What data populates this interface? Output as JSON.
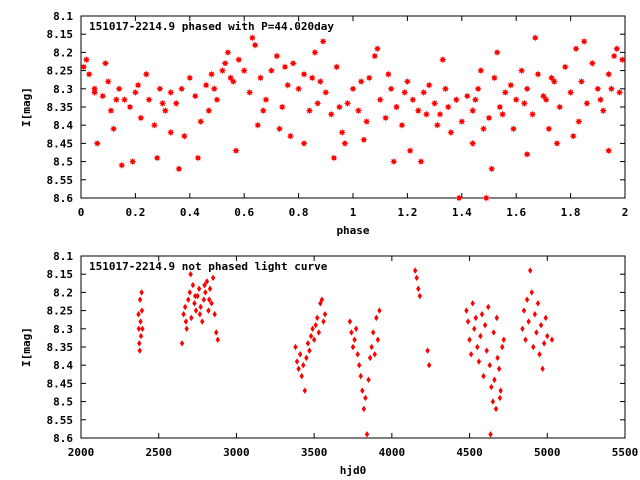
{
  "chart_data": [
    {
      "type": "scatter",
      "title": "151017-2214.9 phased with P=44.020day",
      "xlabel": "phase",
      "ylabel": "I[mag]",
      "xlim": [
        0,
        2
      ],
      "ylim": [
        8.6,
        8.1
      ],
      "y_reversed": true,
      "x_ticks": [
        "0",
        "0.2",
        "0.4",
        "0.6",
        "0.8",
        "1",
        "1.2",
        "1.4",
        "1.6",
        "1.8",
        "2"
      ],
      "y_ticks": [
        "8.1",
        "8.15",
        "8.2",
        "8.25",
        "8.3",
        "8.35",
        "8.4",
        "8.45",
        "8.5",
        "8.55",
        "8.6"
      ],
      "marker": "star",
      "color": "#ff0000",
      "points": [
        [
          0.01,
          8.24
        ],
        [
          0.02,
          8.22
        ],
        [
          0.03,
          8.26
        ],
        [
          0.05,
          8.31
        ],
        [
          0.06,
          8.45
        ],
        [
          0.08,
          8.32
        ],
        [
          0.1,
          8.28
        ],
        [
          0.12,
          8.41
        ],
        [
          0.14,
          8.3
        ],
        [
          0.16,
          8.33
        ],
        [
          0.18,
          8.35
        ],
        [
          0.2,
          8.31
        ],
        [
          0.22,
          8.38
        ],
        [
          0.25,
          8.33
        ],
        [
          0.27,
          8.4
        ],
        [
          0.29,
          8.3
        ],
        [
          0.31,
          8.36
        ],
        [
          0.33,
          8.42
        ],
        [
          0.35,
          8.34
        ],
        [
          0.37,
          8.3
        ],
        [
          0.4,
          8.27
        ],
        [
          0.42,
          8.32
        ],
        [
          0.44,
          8.39
        ],
        [
          0.46,
          8.29
        ],
        [
          0.48,
          8.26
        ],
        [
          0.5,
          8.33
        ],
        [
          0.52,
          8.25
        ],
        [
          0.54,
          8.2
        ],
        [
          0.56,
          8.28
        ],
        [
          0.58,
          8.22
        ],
        [
          0.6,
          8.25
        ],
        [
          0.62,
          8.31
        ],
        [
          0.64,
          8.18
        ],
        [
          0.66,
          8.27
        ],
        [
          0.68,
          8.33
        ],
        [
          0.7,
          8.25
        ],
        [
          0.72,
          8.21
        ],
        [
          0.74,
          8.35
        ],
        [
          0.76,
          8.29
        ],
        [
          0.78,
          8.23
        ],
        [
          0.8,
          8.3
        ],
        [
          0.82,
          8.26
        ],
        [
          0.84,
          8.36
        ],
        [
          0.86,
          8.2
        ],
        [
          0.88,
          8.28
        ],
        [
          0.9,
          8.31
        ],
        [
          0.92,
          8.37
        ],
        [
          0.94,
          8.24
        ],
        [
          0.96,
          8.42
        ],
        [
          0.98,
          8.34
        ],
        [
          1.0,
          8.3
        ],
        [
          1.02,
          8.36
        ],
        [
          1.04,
          8.44
        ],
        [
          1.06,
          8.27
        ],
        [
          1.08,
          8.21
        ],
        [
          1.1,
          8.33
        ],
        [
          1.12,
          8.38
        ],
        [
          1.14,
          8.3
        ],
        [
          1.16,
          8.35
        ],
        [
          1.18,
          8.4
        ],
        [
          1.2,
          8.28
        ],
        [
          1.22,
          8.33
        ],
        [
          1.24,
          8.36
        ],
        [
          1.26,
          8.31
        ],
        [
          1.28,
          8.29
        ],
        [
          1.3,
          8.34
        ],
        [
          1.32,
          8.37
        ],
        [
          1.34,
          8.3
        ],
        [
          1.36,
          8.42
        ],
        [
          1.38,
          8.33
        ],
        [
          1.4,
          8.39
        ],
        [
          1.42,
          8.32
        ],
        [
          1.44,
          8.36
        ],
        [
          1.46,
          8.3
        ],
        [
          1.48,
          8.41
        ],
        [
          1.5,
          8.38
        ],
        [
          1.52,
          8.27
        ],
        [
          1.54,
          8.35
        ],
        [
          1.56,
          8.31
        ],
        [
          1.58,
          8.29
        ],
        [
          1.6,
          8.33
        ],
        [
          1.62,
          8.25
        ],
        [
          1.64,
          8.3
        ],
        [
          1.66,
          8.37
        ],
        [
          1.68,
          8.26
        ],
        [
          1.7,
          8.32
        ],
        [
          1.72,
          8.41
        ],
        [
          1.74,
          8.28
        ],
        [
          1.76,
          8.35
        ],
        [
          1.78,
          8.24
        ],
        [
          1.8,
          8.31
        ],
        [
          1.82,
          8.19
        ],
        [
          1.84,
          8.28
        ],
        [
          1.86,
          8.34
        ],
        [
          1.88,
          8.23
        ],
        [
          1.9,
          8.3
        ],
        [
          1.92,
          8.36
        ],
        [
          1.94,
          8.26
        ],
        [
          1.96,
          8.21
        ],
        [
          1.98,
          8.31
        ],
        [
          0.15,
          8.51
        ],
        [
          0.19,
          8.5
        ],
        [
          0.28,
          8.49
        ],
        [
          0.36,
          8.52
        ],
        [
          0.43,
          8.49
        ],
        [
          0.57,
          8.47
        ],
        [
          0.82,
          8.45
        ],
        [
          0.93,
          8.49
        ],
        [
          1.15,
          8.5
        ],
        [
          1.25,
          8.5
        ],
        [
          1.39,
          8.6
        ],
        [
          1.49,
          8.6
        ],
        [
          1.51,
          8.52
        ],
        [
          1.64,
          8.48
        ],
        [
          1.94,
          8.47
        ],
        [
          0.09,
          8.23
        ],
        [
          0.24,
          8.26
        ],
        [
          0.53,
          8.23
        ],
        [
          0.63,
          8.16
        ],
        [
          0.89,
          8.17
        ],
        [
          1.09,
          8.19
        ],
        [
          1.33,
          8.22
        ],
        [
          1.53,
          8.2
        ],
        [
          1.67,
          8.16
        ],
        [
          1.85,
          8.17
        ],
        [
          1.97,
          8.19
        ],
        [
          0.73,
          8.41
        ],
        [
          0.97,
          8.45
        ],
        [
          1.21,
          8.47
        ],
        [
          1.44,
          8.45
        ],
        [
          1.75,
          8.45
        ],
        [
          0.05,
          8.3
        ],
        [
          0.21,
          8.29
        ],
        [
          0.38,
          8.43
        ],
        [
          0.47,
          8.36
        ],
        [
          0.65,
          8.4
        ],
        [
          0.77,
          8.43
        ],
        [
          0.87,
          8.34
        ],
        [
          1.05,
          8.39
        ],
        [
          1.27,
          8.37
        ],
        [
          1.45,
          8.33
        ],
        [
          1.59,
          8.41
        ],
        [
          1.71,
          8.33
        ],
        [
          1.83,
          8.39
        ],
        [
          1.95,
          8.3
        ],
        [
          0.11,
          8.36
        ],
        [
          0.3,
          8.34
        ],
        [
          0.49,
          8.3
        ],
        [
          0.67,
          8.36
        ],
        [
          0.85,
          8.27
        ],
        [
          1.03,
          8.28
        ],
        [
          1.19,
          8.31
        ],
        [
          1.35,
          8.35
        ],
        [
          1.55,
          8.37
        ],
        [
          1.73,
          8.27
        ],
        [
          1.91,
          8.33
        ],
        [
          0.13,
          8.33
        ],
        [
          0.33,
          8.31
        ],
        [
          0.55,
          8.27
        ],
        [
          0.75,
          8.24
        ],
        [
          0.95,
          8.35
        ],
        [
          1.13,
          8.26
        ],
        [
          1.31,
          8.4
        ],
        [
          1.47,
          8.25
        ],
        [
          1.63,
          8.34
        ],
        [
          1.81,
          8.43
        ],
        [
          1.99,
          8.22
        ]
      ]
    },
    {
      "type": "scatter",
      "title": "151017-2214.9 not phased light curve",
      "xlabel": "hjd0",
      "ylabel": "I[mag]",
      "xlim": [
        2000,
        5500
      ],
      "ylim": [
        8.6,
        8.1
      ],
      "y_reversed": true,
      "x_ticks": [
        "2000",
        "2500",
        "3000",
        "3500",
        "4000",
        "4500",
        "5000",
        "5500"
      ],
      "y_ticks": [
        "8.1",
        "8.15",
        "8.2",
        "8.25",
        "8.3",
        "8.35",
        "8.4",
        "8.45",
        "8.5",
        "8.55",
        "8.6"
      ],
      "marker": "diamond",
      "color": "#ff0000",
      "points": [
        [
          2370,
          8.26
        ],
        [
          2372,
          8.3
        ],
        [
          2375,
          8.34
        ],
        [
          2378,
          8.36
        ],
        [
          2380,
          8.22
        ],
        [
          2383,
          8.28
        ],
        [
          2386,
          8.32
        ],
        [
          2390,
          8.2
        ],
        [
          2392,
          8.25
        ],
        [
          2395,
          8.3
        ],
        [
          2650,
          8.34
        ],
        [
          2660,
          8.26
        ],
        [
          2670,
          8.24
        ],
        [
          2680,
          8.3
        ],
        [
          2690,
          8.22
        ],
        [
          2700,
          8.2
        ],
        [
          2710,
          8.27
        ],
        [
          2720,
          8.18
        ],
        [
          2730,
          8.23
        ],
        [
          2740,
          8.25
        ],
        [
          2750,
          8.21
        ],
        [
          2760,
          8.19
        ],
        [
          2770,
          8.24
        ],
        [
          2780,
          8.28
        ],
        [
          2790,
          8.22
        ],
        [
          2800,
          8.2
        ],
        [
          2810,
          8.17
        ],
        [
          2820,
          8.25
        ],
        [
          2830,
          8.19
        ],
        [
          2840,
          8.23
        ],
        [
          2850,
          8.16
        ],
        [
          2860,
          8.26
        ],
        [
          2870,
          8.31
        ],
        [
          2880,
          8.33
        ],
        [
          2675,
          8.28
        ],
        [
          2705,
          8.15
        ],
        [
          2735,
          8.21
        ],
        [
          2765,
          8.26
        ],
        [
          2795,
          8.18
        ],
        [
          2825,
          8.22
        ],
        [
          3380,
          8.35
        ],
        [
          3390,
          8.39
        ],
        [
          3400,
          8.41
        ],
        [
          3410,
          8.37
        ],
        [
          3420,
          8.43
        ],
        [
          3430,
          8.4
        ],
        [
          3440,
          8.47
        ],
        [
          3450,
          8.38
        ],
        [
          3460,
          8.34
        ],
        [
          3470,
          8.36
        ],
        [
          3480,
          8.32
        ],
        [
          3490,
          8.3
        ],
        [
          3500,
          8.33
        ],
        [
          3510,
          8.29
        ],
        [
          3520,
          8.27
        ],
        [
          3530,
          8.31
        ],
        [
          3540,
          8.23
        ],
        [
          3550,
          8.22
        ],
        [
          3560,
          8.28
        ],
        [
          3570,
          8.26
        ],
        [
          3730,
          8.28
        ],
        [
          3740,
          8.31
        ],
        [
          3750,
          8.35
        ],
        [
          3760,
          8.33
        ],
        [
          3770,
          8.3
        ],
        [
          3780,
          8.37
        ],
        [
          3790,
          8.4
        ],
        [
          3800,
          8.43
        ],
        [
          3810,
          8.47
        ],
        [
          3820,
          8.52
        ],
        [
          3830,
          8.49
        ],
        [
          3840,
          8.59
        ],
        [
          3850,
          8.44
        ],
        [
          3860,
          8.38
        ],
        [
          3870,
          8.35
        ],
        [
          3880,
          8.31
        ],
        [
          3890,
          8.37
        ],
        [
          3900,
          8.27
        ],
        [
          3910,
          8.33
        ],
        [
          3920,
          8.25
        ],
        [
          4150,
          8.14
        ],
        [
          4160,
          8.16
        ],
        [
          4170,
          8.19
        ],
        [
          4180,
          8.21
        ],
        [
          4230,
          8.36
        ],
        [
          4240,
          8.4
        ],
        [
          4480,
          8.25
        ],
        [
          4490,
          8.28
        ],
        [
          4500,
          8.33
        ],
        [
          4510,
          8.37
        ],
        [
          4520,
          8.23
        ],
        [
          4530,
          8.3
        ],
        [
          4540,
          8.27
        ],
        [
          4550,
          8.35
        ],
        [
          4560,
          8.39
        ],
        [
          4570,
          8.32
        ],
        [
          4580,
          8.26
        ],
        [
          4590,
          8.43
        ],
        [
          4600,
          8.29
        ],
        [
          4610,
          8.36
        ],
        [
          4620,
          8.24
        ],
        [
          4630,
          8.4
        ],
        [
          4640,
          8.46
        ],
        [
          4650,
          8.5
        ],
        [
          4660,
          8.44
        ],
        [
          4670,
          8.52
        ],
        [
          4680,
          8.38
        ],
        [
          4690,
          8.41
        ],
        [
          4700,
          8.47
        ],
        [
          4710,
          8.35
        ],
        [
          4720,
          8.33
        ],
        [
          4635,
          8.59
        ],
        [
          4655,
          8.31
        ],
        [
          4675,
          8.27
        ],
        [
          4695,
          8.49
        ],
        [
          4840,
          8.3
        ],
        [
          4850,
          8.25
        ],
        [
          4860,
          8.33
        ],
        [
          4870,
          8.22
        ],
        [
          4880,
          8.28
        ],
        [
          4890,
          8.14
        ],
        [
          4900,
          8.2
        ],
        [
          4910,
          8.35
        ],
        [
          4920,
          8.26
        ],
        [
          4930,
          8.31
        ],
        [
          4940,
          8.23
        ],
        [
          4950,
          8.37
        ],
        [
          4960,
          8.29
        ],
        [
          4970,
          8.41
        ],
        [
          4980,
          8.34
        ],
        [
          4990,
          8.27
        ],
        [
          5000,
          8.32
        ],
        [
          5030,
          8.33
        ]
      ]
    }
  ]
}
